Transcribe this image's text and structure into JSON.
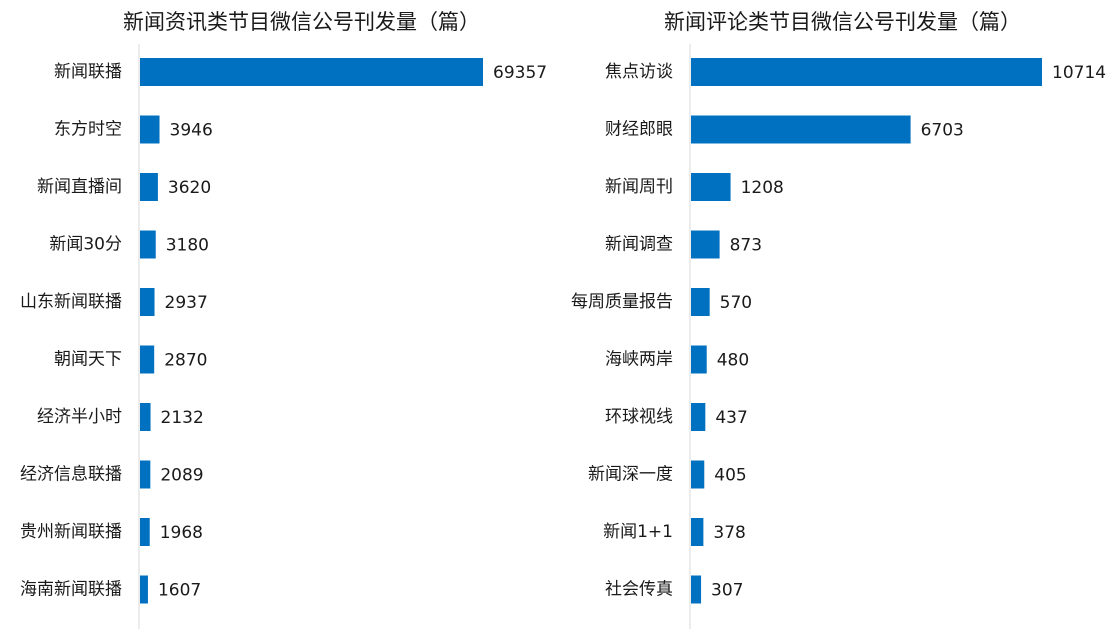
{
  "chart_data": [
    {
      "type": "bar",
      "orientation": "horizontal",
      "title": "新闻资讯类节目微信公号刊发量（篇）",
      "categories": [
        "新闻联播",
        "东方时空",
        "新闻直播间",
        "新闻30分",
        "山东新闻联播",
        "朝闻天下",
        "经济半小时",
        "经济信息联播",
        "贵州新闻联播",
        "海南新闻联播"
      ],
      "values": [
        69357,
        3946,
        3620,
        3180,
        2937,
        2870,
        2132,
        2089,
        1968,
        1607
      ],
      "xlim": [
        0,
        69357
      ],
      "grid": false,
      "legend": "none",
      "bar_color": "#0070C0"
    },
    {
      "type": "bar",
      "orientation": "horizontal",
      "title": "新闻评论类节目微信公号刊发量（篇）",
      "categories": [
        "焦点访谈",
        "财经郎眼",
        "新闻周刊",
        "新闻调查",
        "每周质量报告",
        "海峡两岸",
        "环球视线",
        "新闻深一度",
        "新闻1+1",
        "社会传真"
      ],
      "values": [
        10714,
        6703,
        1208,
        873,
        570,
        480,
        437,
        405,
        378,
        307
      ],
      "xlim": [
        0,
        10714
      ],
      "grid": false,
      "legend": "none",
      "bar_color": "#0070C0"
    }
  ]
}
